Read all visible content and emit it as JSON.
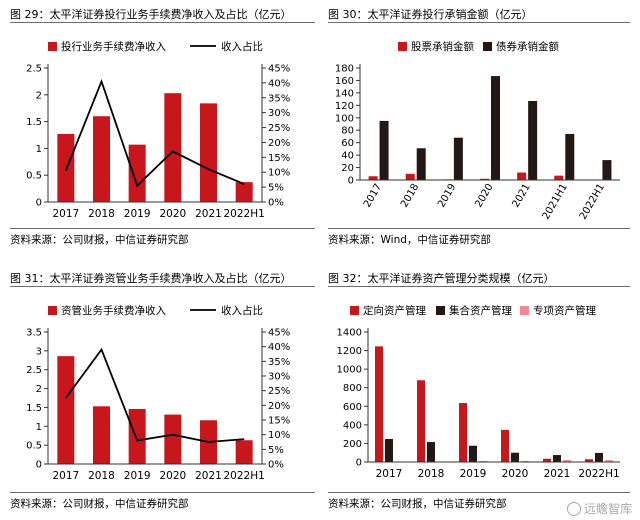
{
  "colors": {
    "red": "#c8161d",
    "black": "#231815",
    "pink": "#f08a8e",
    "line": "#000000"
  },
  "watermark": {
    "text": "远瞻智库"
  },
  "chart_data": [
    {
      "id": "c29",
      "type": "bar",
      "title": "图 29：太平洋证券投行业务手续费净收入及占比（亿元）",
      "source": "资料来源：公司财报，中信证券研究部",
      "categories": [
        "2017",
        "2018",
        "2019",
        "2020",
        "2021",
        "2022H1"
      ],
      "series": [
        {
          "name": "投行业务手续费净收入",
          "kind": "bar",
          "axis": "left",
          "color": "#c8161d",
          "values": [
            1.27,
            1.6,
            1.07,
            2.03,
            1.84,
            0.37
          ]
        },
        {
          "name": "收入占比",
          "kind": "line",
          "axis": "right",
          "color": "#000000",
          "values": [
            10.5,
            40.5,
            5.5,
            17.0,
            11.0,
            6.0
          ]
        }
      ],
      "ylim": [
        0,
        2.5
      ],
      "yticks": [
        0,
        0.5,
        1,
        1.5,
        2,
        2.5
      ],
      "yticklabels": [
        "0",
        "0.5",
        "1",
        "1.5",
        "2",
        "2.5"
      ],
      "y2lim": [
        0,
        45
      ],
      "y2ticks": [
        0,
        5,
        10,
        15,
        20,
        25,
        30,
        35,
        40,
        45
      ],
      "y2ticklabels": [
        "0%",
        "5%",
        "10%",
        "15%",
        "20%",
        "25%",
        "30%",
        "35%",
        "40%",
        "45%"
      ],
      "xlabel": "",
      "ylabel": "",
      "rotate_x": false,
      "legend_placement": "top"
    },
    {
      "id": "c30",
      "type": "bar",
      "title": "图 30：太平洋证券投行承销金额（亿元）",
      "source": "资料来源：Wind，中信证券研究部",
      "categories": [
        "2017",
        "2018",
        "2019",
        "2020",
        "2021",
        "2021H1",
        "2022H1"
      ],
      "series": [
        {
          "name": "股票承销金额",
          "kind": "bar",
          "axis": "left",
          "color": "#c8161d",
          "values": [
            6,
            10,
            1,
            2,
            12,
            7,
            0.5
          ]
        },
        {
          "name": "债券承销金额",
          "kind": "bar",
          "axis": "left",
          "color": "#231815",
          "values": [
            95,
            51,
            68,
            167,
            127,
            74,
            32
          ]
        }
      ],
      "ylim": [
        0,
        180
      ],
      "yticks": [
        0,
        20,
        40,
        60,
        80,
        100,
        120,
        140,
        160,
        180
      ],
      "yticklabels": [
        "0",
        "20",
        "40",
        "60",
        "80",
        "100",
        "120",
        "140",
        "160",
        "180"
      ],
      "xlabel": "",
      "ylabel": "",
      "rotate_x": true,
      "legend_placement": "top"
    },
    {
      "id": "c31",
      "type": "bar",
      "title": "图 31：太平洋证券资管业务手续费净收入及占比（亿元）",
      "source": "资料来源：公司财报，中信证券研究部",
      "categories": [
        "2017",
        "2018",
        "2019",
        "2020",
        "2021",
        "2022H1"
      ],
      "series": [
        {
          "name": "资管业务手续费净收入",
          "kind": "bar",
          "axis": "left",
          "color": "#c8161d",
          "values": [
            2.86,
            1.53,
            1.46,
            1.31,
            1.16,
            0.63
          ]
        },
        {
          "name": "收入占比",
          "kind": "line",
          "axis": "right",
          "color": "#000000",
          "values": [
            22.5,
            39.0,
            8.0,
            10.0,
            7.5,
            8.5
          ]
        }
      ],
      "ylim": [
        0,
        3.5
      ],
      "yticks": [
        0,
        0.5,
        1,
        1.5,
        2,
        2.5,
        3,
        3.5
      ],
      "yticklabels": [
        "0",
        "0.5",
        "1",
        "1.5",
        "2",
        "2.5",
        "3",
        "3.5"
      ],
      "y2lim": [
        0,
        45
      ],
      "y2ticks": [
        0,
        5,
        10,
        15,
        20,
        25,
        30,
        35,
        40,
        45
      ],
      "y2ticklabels": [
        "0%",
        "5%",
        "10%",
        "15%",
        "20%",
        "25%",
        "30%",
        "35%",
        "40%",
        "45%"
      ],
      "xlabel": "",
      "ylabel": "",
      "rotate_x": false,
      "legend_placement": "top"
    },
    {
      "id": "c32",
      "type": "bar",
      "title": "图 32：太平洋证券资产管理分类规模（亿元）",
      "source": "资料来源：公司财报，中信证券研究部",
      "categories": [
        "2017",
        "2018",
        "2019",
        "2020",
        "2021",
        "2022H1"
      ],
      "series": [
        {
          "name": "定向资产管理",
          "kind": "bar",
          "axis": "left",
          "color": "#c8161d",
          "values": [
            1245,
            880,
            635,
            345,
            35,
            30
          ]
        },
        {
          "name": "集合资产管理",
          "kind": "bar",
          "axis": "left",
          "color": "#231815",
          "values": [
            248,
            215,
            175,
            100,
            75,
            98
          ]
        },
        {
          "name": "专项资产管理",
          "kind": "bar",
          "axis": "left",
          "color": "#f08a8e",
          "values": [
            5,
            5,
            10,
            10,
            20,
            20
          ]
        }
      ],
      "ylim": [
        0,
        1400
      ],
      "yticks": [
        0,
        200,
        400,
        600,
        800,
        1000,
        1200,
        1400
      ],
      "yticklabels": [
        "0",
        "200",
        "400",
        "600",
        "800",
        "1000",
        "1200",
        "1400"
      ],
      "xlabel": "",
      "ylabel": "",
      "rotate_x": false,
      "legend_placement": "top"
    }
  ]
}
